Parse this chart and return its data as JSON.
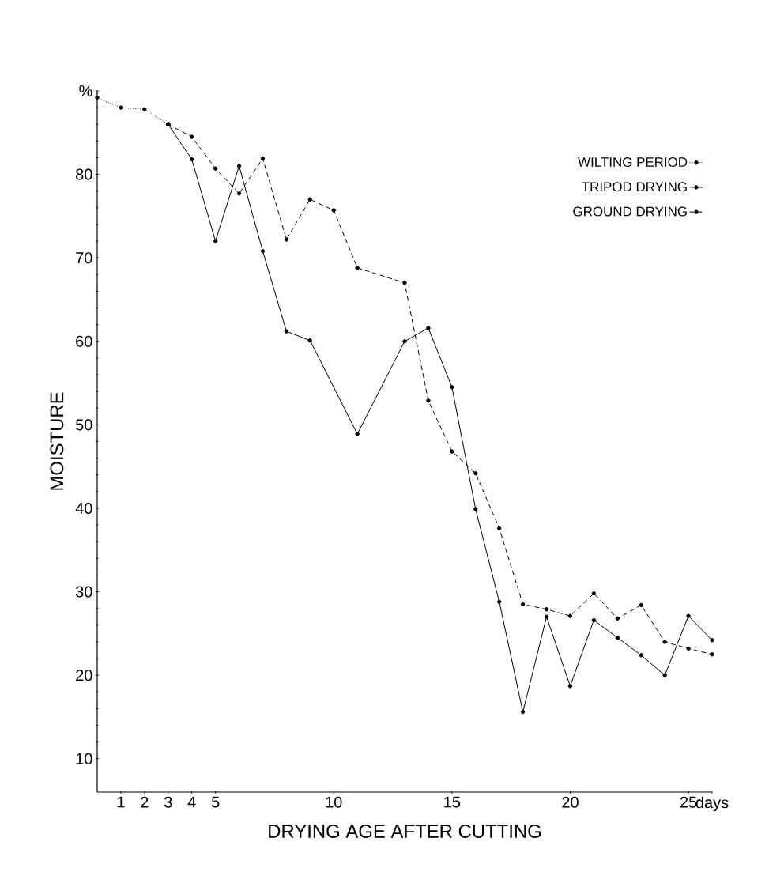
{
  "chart_data": {
    "type": "line",
    "xlabel": "DRYING AGE AFTER CUTTING",
    "ylabel": "MOISTURE",
    "xlim": [
      0,
      26
    ],
    "ylim": [
      6,
      90
    ],
    "xticks": [
      1,
      2,
      3,
      4,
      5,
      10,
      15,
      20,
      25,
      {
        "value": 26,
        "label": "days"
      }
    ],
    "yticks": [
      10,
      20,
      30,
      40,
      50,
      60,
      70,
      80,
      {
        "value": 90,
        "label": "%"
      }
    ],
    "legend": "top right",
    "marker": "circle",
    "series": [
      {
        "name": "WILTING PERIOD",
        "color": "#000000",
        "line_style": "dotted",
        "x": [
          0,
          1,
          2,
          3
        ],
        "values": [
          89.2,
          88.0,
          87.8,
          86.0
        ]
      },
      {
        "name": "TRIPOD DRYING",
        "color": "#000000",
        "line_style": "solid",
        "x": [
          3,
          4,
          5,
          6,
          7,
          8,
          9,
          11,
          13,
          14,
          15,
          16,
          17,
          18,
          19,
          20,
          21,
          22,
          23,
          24,
          25,
          26
        ],
        "values": [
          86.0,
          81.8,
          72.0,
          81.0,
          70.8,
          61.2,
          60.1,
          48.9,
          60.0,
          61.6,
          54.5,
          39.9,
          28.8,
          15.6,
          27.0,
          18.7,
          26.6,
          24.5,
          22.4,
          20.0,
          27.1,
          24.2
        ]
      },
      {
        "name": "GROUND DRYING",
        "color": "#000000",
        "line_style": "dashed",
        "x": [
          3,
          4,
          5,
          6,
          7,
          8,
          9,
          10,
          11,
          13,
          14,
          15,
          16,
          17,
          18,
          19,
          20,
          21,
          22,
          23,
          24,
          25,
          26
        ],
        "values": [
          86.0,
          84.5,
          80.7,
          77.7,
          81.9,
          72.2,
          77.0,
          75.7,
          68.8,
          67.0,
          52.9,
          46.8,
          44.2,
          37.6,
          28.5,
          27.9,
          27.1,
          29.8,
          26.8,
          28.4,
          24.0,
          23.2,
          22.5
        ]
      }
    ]
  }
}
